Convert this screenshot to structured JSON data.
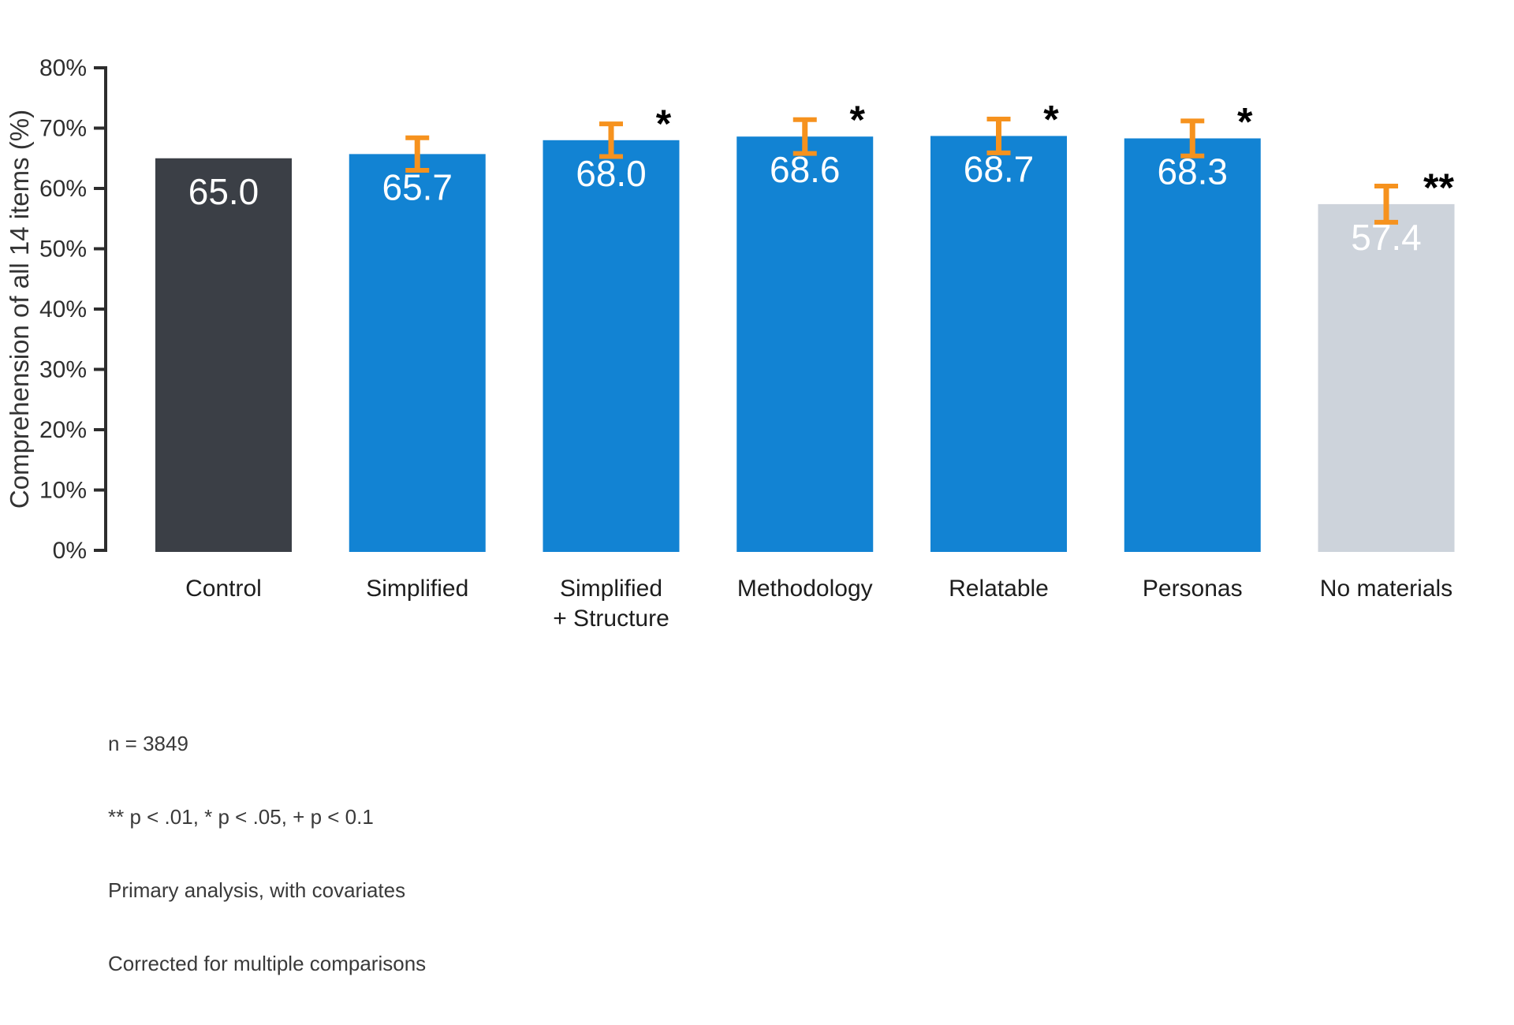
{
  "chart_data": {
    "type": "bar",
    "title": "",
    "xlabel": "",
    "ylabel": "Comprehension of all 14 items (%)",
    "ylim": [
      0,
      80
    ],
    "ytick_step": 10,
    "ytick_labels": [
      "0%",
      "10%",
      "20%",
      "30%",
      "40%",
      "50%",
      "60%",
      "70%",
      "80%"
    ],
    "grid": false,
    "legend": null,
    "categories": [
      "Control",
      "Simplified",
      "Simplified + Structure",
      "Methodology",
      "Relatable",
      "Personas",
      "No materials"
    ],
    "category_label_lines": [
      [
        "Control"
      ],
      [
        "Simplified"
      ],
      [
        "Simplified",
        "+ Structure"
      ],
      [
        "Methodology"
      ],
      [
        "Relatable"
      ],
      [
        "Personas"
      ],
      [
        "No materials"
      ]
    ],
    "values": [
      65.0,
      65.7,
      68.0,
      68.6,
      68.7,
      68.3,
      57.4
    ],
    "value_labels": [
      "65.0",
      "65.7",
      "68.0",
      "68.6",
      "68.7",
      "68.3",
      "57.4"
    ],
    "errors": [
      null,
      2.7,
      2.7,
      2.8,
      2.8,
      2.9,
      3.0
    ],
    "significance": [
      "",
      "",
      "*",
      "*",
      "*",
      "*",
      "**"
    ],
    "bar_colors": [
      "#3B3F46",
      "#1283D3",
      "#1283D3",
      "#1283D3",
      "#1283D3",
      "#1283D3",
      "#CDD3DB"
    ],
    "value_label_color": "#ffffff",
    "error_color": "#F6921E",
    "axis_color": "#2D2D2D",
    "tick_label_color": "#2e2e2e",
    "category_label_color": "#1d1d1d",
    "significance_color": "#000000",
    "notes": [
      "n = 3849",
      "** p < .01, * p < .05, + p < 0.1",
      "Primary analysis, with covariates",
      "Corrected for multiple comparisons"
    ]
  }
}
